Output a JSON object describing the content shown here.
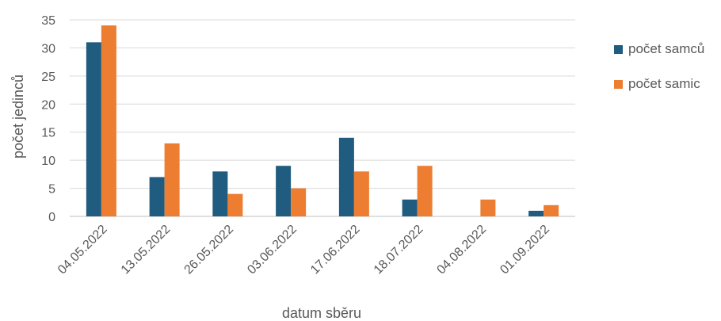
{
  "chart_data": {
    "type": "bar",
    "categories": [
      "04.05.2022",
      "13.05.2022",
      "26.05.2022",
      "03.06.2022",
      "17.06.2022",
      "18.07.2022",
      "04.08.2022",
      "01.09.2022"
    ],
    "series": [
      {
        "name": "počet samců",
        "color": "#1F5C7F",
        "values": [
          31,
          7,
          8,
          9,
          14,
          3,
          0,
          1
        ]
      },
      {
        "name": "počet samic",
        "color": "#ED7D31",
        "values": [
          34,
          13,
          4,
          5,
          8,
          9,
          3,
          2
        ]
      }
    ],
    "xlabel": "datum sběru",
    "ylabel": "počet jedinců",
    "ylim": [
      0,
      35
    ],
    "yticks": [
      0,
      5,
      10,
      15,
      20,
      25,
      30,
      35
    ],
    "grid": true,
    "legend": "right"
  }
}
